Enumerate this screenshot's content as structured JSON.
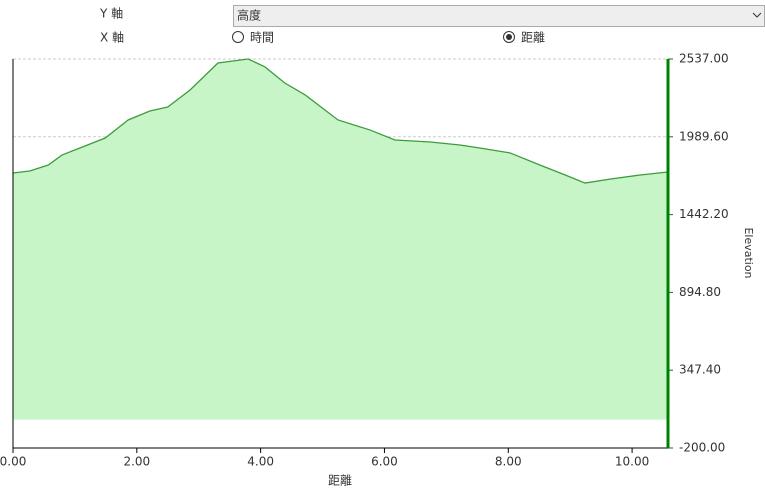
{
  "controls": {
    "y_axis_label": "Y 軸",
    "y_axis_value": "高度",
    "x_axis_label": "X 軸",
    "x_options": [
      "時間",
      "距離"
    ],
    "x_selected": 1
  },
  "chart_data": {
    "type": "area",
    "x_label": "距離",
    "y_label": "Elevation",
    "x": [
      0,
      0.27,
      0.57,
      0.79,
      1.08,
      1.49,
      1.86,
      2.21,
      2.5,
      2.86,
      3.31,
      3.8,
      4.07,
      4.39,
      4.72,
      5.25,
      5.77,
      6.17,
      6.74,
      7.22,
      7.54,
      8.03,
      8.51,
      8.92,
      9.24,
      9.64,
      10.13,
      10.58
    ],
    "values": [
      1735,
      1749,
      1791,
      1861,
      1911,
      1981,
      2108,
      2171,
      2199,
      2319,
      2509,
      2537,
      2481,
      2368,
      2284,
      2108,
      2037,
      1967,
      1953,
      1932,
      1911,
      1876,
      1791,
      1721,
      1664,
      1692,
      1721,
      1742
    ],
    "color": "#3c9c3c",
    "fill": "#c8f5c8",
    "axis_color": "#008000",
    "xlim": [
      0,
      10.58
    ],
    "ylim": [
      -200,
      2537
    ],
    "xticks": [
      {
        "value": 0,
        "label": "0.00"
      },
      {
        "value": 2,
        "label": "2.00"
      },
      {
        "value": 4,
        "label": "4.00"
      },
      {
        "value": 6,
        "label": "6.00"
      },
      {
        "value": 8,
        "label": "8.00"
      },
      {
        "value": 10,
        "label": "10.00"
      }
    ],
    "yticks": [
      {
        "value": -200,
        "label": "-200.00"
      },
      {
        "value": 347.4,
        "label": "347.40"
      },
      {
        "value": 894.8,
        "label": "894.80"
      },
      {
        "value": 1442.2,
        "label": "1442.20"
      },
      {
        "value": 1989.6,
        "label": "1989.60"
      },
      {
        "value": 2537,
        "label": "2537.00"
      }
    ],
    "grid": true
  }
}
